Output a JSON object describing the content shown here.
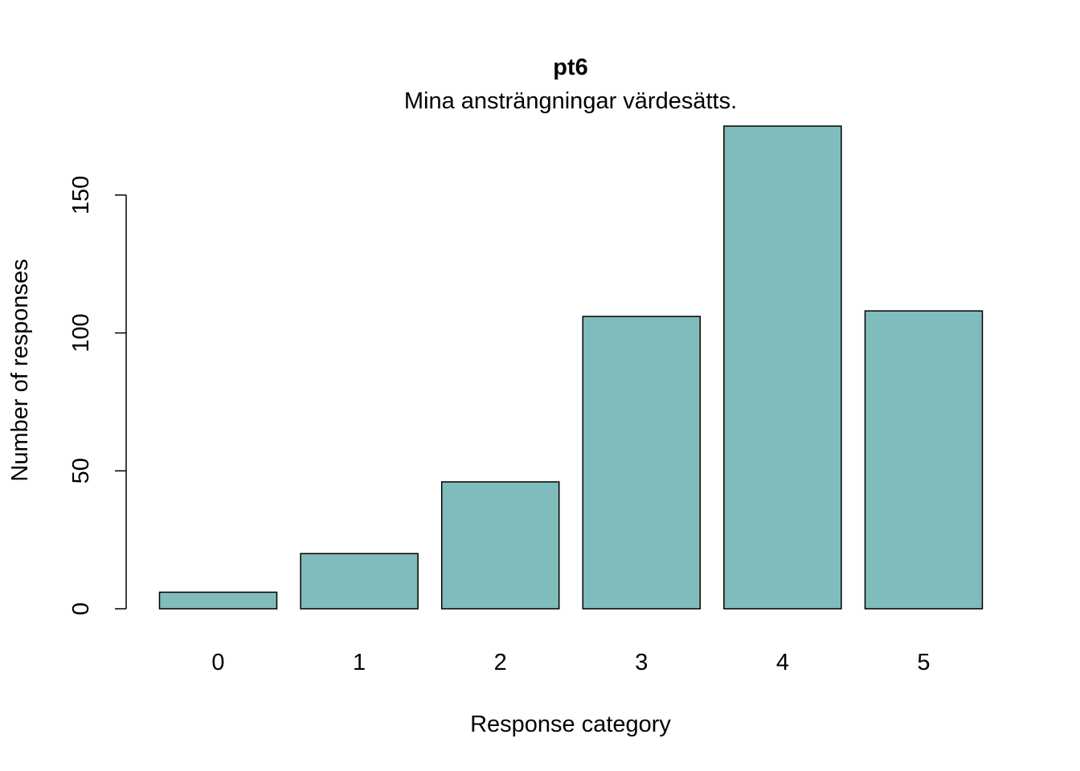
{
  "chart_data": {
    "type": "bar",
    "title": "pt6",
    "subtitle": "Mina ansträngningar värdesätts.",
    "xlabel": "Response category",
    "ylabel": "Number of responses",
    "categories": [
      "0",
      "1",
      "2",
      "3",
      "4",
      "5"
    ],
    "values": [
      6,
      20,
      46,
      106,
      175,
      108
    ],
    "ylim": [
      0,
      175
    ],
    "yticks": [
      0,
      50,
      100,
      150
    ],
    "bar_color": "#80BCBC",
    "grid": false,
    "legend": "none"
  }
}
